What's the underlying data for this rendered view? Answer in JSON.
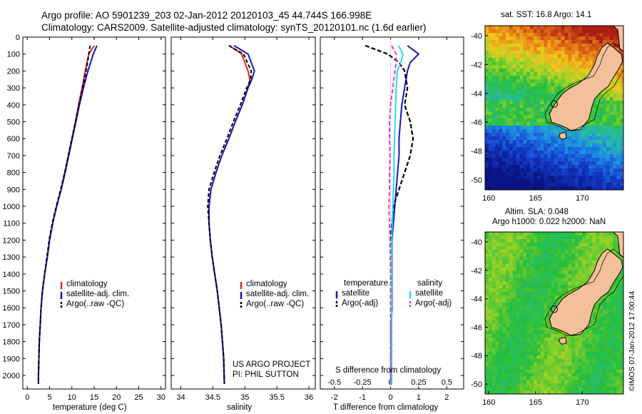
{
  "header": {
    "line1": "Argo profile: AO 5901239_203 02-Jan-2012 20120103_45 44.744S 166.998E",
    "line2": "Climatology: CARS2009. Satellite-adjusted climatology: synTS_20120101.nc (1.6d earlier)"
  },
  "legend": {
    "climatology": "climatology",
    "satellite_adj": "satellite-adj. clim.",
    "argo_raw": "Argo(..raw -QC)",
    "temperature": "temperature",
    "salinity": "salinity",
    "satellite": "satellite",
    "argo_adj": "Argo(-adj)"
  },
  "project": {
    "line1": "US ARGO PROJECT",
    "line2": "PI: PHIL SUTTON"
  },
  "maps": {
    "sst_title": "sat. SST: 16.8 Argo: 14.1",
    "sla_title1": "Altim. SLA: 0.048",
    "sla_title2": "Argo h1000: 0.022 h2000: NaN",
    "credit": "©IMOS 07-Jan-2012 17:00:44"
  },
  "colors": {
    "climatology": "#e8201e",
    "satellite": "#1515c8",
    "argo": "#000000",
    "satellite_s": "#22dde8",
    "argo_s": "#e040d0",
    "land": "#f4c09a"
  },
  "chart_data": [
    {
      "type": "line",
      "xlabel": "temperature (deg C)",
      "ylabel": "",
      "xlim": [
        -1,
        31
      ],
      "ylim": [
        2080,
        0
      ],
      "xticks": [
        0,
        5,
        10,
        15,
        20,
        25,
        30
      ],
      "yticks": [
        0,
        100,
        200,
        300,
        400,
        500,
        600,
        700,
        800,
        900,
        1000,
        1100,
        1200,
        1300,
        1400,
        1500,
        1600,
        1700,
        1800,
        1900,
        2000
      ],
      "series": [
        {
          "name": "climatology",
          "x": [
            15.0,
            13.8,
            13.0,
            12.3,
            11.5,
            10.8,
            10.0,
            9.2,
            8.4,
            7.6,
            6.6,
            5.7,
            5.0,
            4.5,
            3.9,
            3.4,
            3.1,
            2.9,
            2.7,
            2.6,
            2.5,
            2.5
          ],
          "y": [
            50,
            100,
            200,
            300,
            400,
            500,
            600,
            700,
            800,
            900,
            1000,
            1100,
            1200,
            1300,
            1400,
            1500,
            1600,
            1700,
            1800,
            1900,
            2000,
            2050
          ]
        },
        {
          "name": "satellite-adj. clim.",
          "x": [
            15.6,
            14.8,
            13.6,
            12.6,
            11.7,
            10.9,
            10.1,
            9.3,
            8.5,
            7.6,
            6.6,
            5.7,
            5.0,
            4.5,
            3.9,
            3.4,
            3.1,
            2.9,
            2.7,
            2.6,
            2.5,
            2.5
          ],
          "y": [
            50,
            100,
            200,
            300,
            400,
            500,
            600,
            700,
            800,
            900,
            1000,
            1100,
            1200,
            1300,
            1400,
            1500,
            1600,
            1700,
            1800,
            1900,
            2000,
            2050
          ]
        },
        {
          "name": "Argo(..raw -QC)",
          "x": [
            14.1,
            13.8,
            13.2,
            12.4,
            11.6,
            10.8,
            10.0,
            9.2,
            8.4,
            7.5,
            6.5,
            5.6,
            4.9,
            4.4,
            3.9,
            3.4,
            3.1,
            2.9,
            2.7,
            2.6,
            2.5,
            2.5
          ],
          "y": [
            50,
            100,
            200,
            300,
            400,
            500,
            600,
            700,
            800,
            900,
            1000,
            1100,
            1200,
            1300,
            1400,
            1500,
            1600,
            1700,
            1800,
            1900,
            2000,
            2050
          ]
        }
      ]
    },
    {
      "type": "line",
      "xlabel": "salinity",
      "ylabel": "",
      "xlim": [
        33.85,
        36.1
      ],
      "ylim": [
        2080,
        0
      ],
      "xticks": [
        34,
        34.5,
        35,
        35.5,
        36
      ],
      "series": [
        {
          "name": "climatology",
          "x": [
            34.76,
            34.95,
            35.05,
            35.08,
            35.05,
            34.96,
            34.85,
            34.75,
            34.64,
            34.55,
            34.47,
            34.44,
            34.44,
            34.46,
            34.49,
            34.53,
            34.57,
            34.6,
            34.63,
            34.65,
            34.67,
            34.68
          ],
          "y": [
            50,
            100,
            200,
            250,
            300,
            400,
            500,
            600,
            700,
            800,
            900,
            1000,
            1100,
            1200,
            1300,
            1400,
            1500,
            1600,
            1700,
            1800,
            1900,
            2050
          ]
        },
        {
          "name": "satellite-adj. clim.",
          "x": [
            34.83,
            35.05,
            35.15,
            35.11,
            35.05,
            34.96,
            34.85,
            34.75,
            34.64,
            34.55,
            34.47,
            34.44,
            34.44,
            34.46,
            34.49,
            34.53,
            34.57,
            34.6,
            34.63,
            34.65,
            34.67,
            34.68
          ],
          "y": [
            50,
            100,
            200,
            250,
            300,
            400,
            500,
            600,
            700,
            800,
            900,
            1000,
            1100,
            1200,
            1300,
            1400,
            1500,
            1600,
            1700,
            1800,
            1900,
            2050
          ]
        },
        {
          "name": "Argo(..raw -QC)",
          "x": [
            34.75,
            34.98,
            35.1,
            35.09,
            35.03,
            34.93,
            34.82,
            34.72,
            34.61,
            34.52,
            34.44,
            34.42,
            34.44,
            34.46,
            34.49,
            34.53,
            34.57,
            34.6,
            34.63,
            34.65,
            34.67,
            34.68
          ],
          "y": [
            50,
            100,
            200,
            250,
            300,
            400,
            500,
            600,
            700,
            800,
            900,
            1000,
            1100,
            1200,
            1300,
            1400,
            1500,
            1600,
            1700,
            1800,
            1900,
            2050
          ]
        }
      ]
    },
    {
      "type": "line",
      "xlabel": "T difference from climatology",
      "xlabel_top": "S difference from climatology",
      "ylabel": "",
      "xlim": [
        -2.5,
        2.6
      ],
      "ylim": [
        2080,
        0
      ],
      "xticks": [
        -2,
        -1,
        0,
        1,
        2
      ],
      "xticks_top": [
        -0.5,
        -0.25,
        0,
        0.25,
        0.5
      ],
      "series": [
        {
          "name": "temperature satellite",
          "x": [
            0.6,
            1.0,
            0.7,
            0.6,
            0.5,
            0.4,
            0.35,
            0.3,
            0.3,
            0.25,
            0.2,
            0.15,
            0.1,
            0.05,
            0.05,
            0.05,
            0.02,
            0.02,
            0.02,
            0.02
          ],
          "y": [
            50,
            100,
            150,
            200,
            300,
            400,
            500,
            600,
            700,
            800,
            900,
            1000,
            1100,
            1200,
            1400,
            1600,
            1700,
            1800,
            1900,
            2050
          ]
        },
        {
          "name": "temperature Argo(-adj)",
          "x": [
            -0.9,
            -0.1,
            0.3,
            0.5,
            0.6,
            0.5,
            0.7,
            0.8,
            0.7,
            0.5,
            0.3,
            0.1,
            0.05,
            0.0,
            0.02,
            0.05,
            0.02,
            0.02,
            0.02,
            0.02
          ],
          "y": [
            50,
            100,
            150,
            200,
            300,
            400,
            500,
            600,
            700,
            800,
            900,
            1000,
            1100,
            1200,
            1400,
            1600,
            1700,
            1800,
            1900,
            2050
          ]
        },
        {
          "name": "salinity satellite",
          "x": [
            0.07,
            0.11,
            0.09,
            0.06,
            0.05,
            0.045,
            0.04,
            0.035,
            0.03,
            0.03,
            0.025,
            0.02,
            0.015,
            0.01,
            0.01,
            0.01,
            0.01,
            0.01,
            0.01
          ],
          "y": [
            50,
            100,
            150,
            200,
            300,
            400,
            500,
            600,
            700,
            800,
            900,
            1000,
            1100,
            1200,
            1400,
            1600,
            1800,
            1900,
            2050
          ]
        },
        {
          "name": "salinity Argo(-adj)",
          "x": [
            0.01,
            0.05,
            0.05,
            0.04,
            0.02,
            0.0,
            -0.01,
            -0.01,
            -0.005,
            -0.01,
            -0.01,
            -0.015,
            -0.01,
            -0.005,
            0.0,
            0.0,
            0.0,
            0.0,
            0.0
          ],
          "y": [
            50,
            100,
            150,
            200,
            300,
            400,
            500,
            600,
            700,
            800,
            900,
            1000,
            1100,
            1200,
            1400,
            1600,
            1800,
            1900,
            2050
          ]
        }
      ]
    },
    {
      "type": "heatmap",
      "title": "sat. SST: 16.8 Argo: 14.1",
      "xlim": [
        159.6,
        174.4
      ],
      "ylim": [
        -50.7,
        -39.3
      ],
      "xticks": [
        160,
        165,
        170
      ],
      "yticks": [
        -50,
        -48,
        -46,
        -44,
        -42,
        -40
      ],
      "argo_position": [
        167.0,
        -44.74
      ]
    },
    {
      "type": "heatmap",
      "title": "Altim. SLA: 0.048",
      "xlim": [
        159.6,
        174.4
      ],
      "ylim": [
        -50.7,
        -39.3
      ],
      "xticks": [
        160,
        165,
        170
      ],
      "yticks": [
        -50,
        -48,
        -46,
        -44,
        -42,
        -40
      ],
      "argo_position": [
        167.0,
        -44.74
      ]
    }
  ]
}
